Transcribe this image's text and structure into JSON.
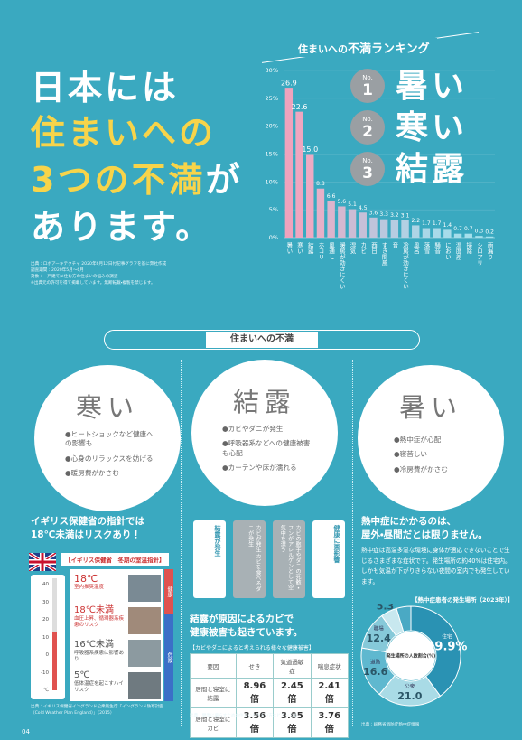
{
  "header": {
    "title_lines": [
      "日本には",
      "住まいへの",
      "3つの不満",
      "が",
      "あります。"
    ],
    "source_lines": [
      "出典：ロボアーキテクチャ 2020年6月12日付記事グラフを基に弊社作成",
      "調査期間：2020年5月〜6月",
      "対象：一戸建てに住む方の住まいの悩みの調査",
      "※出典元の許可を得て掲載しています。無断転載・複製を禁じます。"
    ]
  },
  "ranking": {
    "title_pre": "住まいへの",
    "title_em": "不満ランキング",
    "items": [
      {
        "no": "No.",
        "rank": "1",
        "label": "暑い"
      },
      {
        "no": "No.",
        "rank": "2",
        "label": "寒い"
      },
      {
        "no": "No.",
        "rank": "3",
        "label": "結露"
      }
    ]
  },
  "chart_data": [
    {
      "type": "bar",
      "categories": [
        "暑い",
        "寒い",
        "結露",
        "ホコリ",
        "風通し",
        "暖房が効きにくい",
        "湿気",
        "カビ",
        "西日",
        "すき間風",
        "音",
        "冷房が効きにくい",
        "風呂",
        "落雪",
        "騒音",
        "におい",
        "温度差",
        "掃除",
        "シロアリ",
        "雨漏り"
      ],
      "values": [
        26.9,
        22.6,
        15.0,
        8.8,
        6.6,
        5.6,
        5.1,
        4.5,
        3.6,
        3.3,
        3.2,
        3.1,
        2.2,
        1.7,
        1.7,
        1.4,
        0.7,
        0.7,
        0.3,
        0.2
      ],
      "value_labels": [
        "26.9",
        "22.6",
        "15.0",
        "8.8",
        "6.6",
        "5.6",
        "5.1",
        "4.5",
        "3.6",
        "3.3",
        "3.2",
        "3.1",
        "2.2",
        "1.7",
        "1.7",
        "1.4",
        "0.7",
        "0.7",
        "0.3",
        "0.2"
      ],
      "colors": [
        "#efa3bd",
        "#efa6c0",
        "#eeaac3",
        "#e6b0c8",
        "#dcb4cc",
        "#d4b8d0",
        "#ccbcd4",
        "#c6c0d8",
        "#c0c4db",
        "#bac8de",
        "#b6cce1",
        "#b2d0e3",
        "#aed4e5",
        "#abd7e7",
        "#a9dae9",
        "#a7dcea",
        "#a5deeb",
        "#a4e0ec",
        "#a3e1ed",
        "#a2e2ee"
      ],
      "ylim": [
        0,
        30
      ],
      "yticks": [
        {
          "value": 0,
          "label": "0%"
        },
        {
          "value": 5,
          "label": "5%"
        },
        {
          "value": 10,
          "label": "10%"
        },
        {
          "value": 15,
          "label": "15%"
        },
        {
          "value": 20,
          "label": "20%"
        },
        {
          "value": 25,
          "label": "25%"
        },
        {
          "value": 30,
          "label": "30%"
        }
      ]
    },
    {
      "type": "pie",
      "title": "【熱中症患者の発生場所（2023年）】",
      "center_label": "発生場所の人数割合(%)",
      "categories": [
        "住宅",
        "公衆",
        "道路",
        "職場",
        "その他",
        "教育機関"
      ],
      "values": [
        39.9,
        21.0,
        16.6,
        12.4,
        5.3,
        4.7
      ],
      "value_labels": [
        "39.9%",
        "21.0",
        "16.6",
        "12.4",
        "5.3",
        "4.7"
      ],
      "colors": [
        "#2a92b3",
        "#a9dbe6",
        "#5fb8cf",
        "#86c9d9",
        "#c8e8ef",
        "#4aa9c4"
      ]
    }
  ],
  "section": {
    "title_pre": "住まいへの",
    "title_em": "不満",
    "columns": [
      {
        "title": "寒い",
        "bullets": [
          "●ヒートショックなど健康への影響も",
          "●心身のリラックスを妨げる",
          "●暖房費がかさむ"
        ]
      },
      {
        "title": "結露",
        "bullets": [
          "●カビやダニが発生",
          "●呼吸器系などへの健康被害も心配",
          "●カーテンや床が濡れる"
        ]
      },
      {
        "title": "暑い",
        "bullets": [
          "●熱中症が心配",
          "●寝苦しい",
          "●冷房費がかさむ"
        ]
      }
    ]
  },
  "cold": {
    "title_lines": [
      "イギリス保健省の指針では",
      "18℃未満はリスクあり！"
    ],
    "guide_title": "【イギリス保健省　冬期の室温指針】",
    "scale": [
      "40",
      "30",
      "20",
      "10",
      "0",
      "-10",
      "℃"
    ],
    "bands": [
      "健康",
      "危険"
    ],
    "steps": [
      {
        "temp": "18℃",
        "text": "室内推奨温度"
      },
      {
        "temp": "18℃未満",
        "text": "血圧上昇、循環器系疾患のリスク"
      },
      {
        "temp": "16℃未満",
        "text": "呼吸器系疾患に影響あり"
      },
      {
        "temp": "5℃",
        "text": "低体温症を起こすハイリスク"
      }
    ],
    "source": "出典：イギリス保健省イングランド公衆衛生庁「イングランド防寒計画（Cold Weather Plan England）」（2015）"
  },
  "mold": {
    "boxes": [
      "結露が発生",
      "カビが発生 カビを食べるダニが発生",
      "カビの胞子やダニの死骸・フンがアレルゲンとして空気中を漂う",
      "健康に悪影響"
    ],
    "title_lines": [
      "結露が原因によるカビで",
      "健康被害も起きています。"
    ],
    "table_title": "【カビやダニによると考えられる様々な健康被害】",
    "table": {
      "header": [
        "要因",
        "せき",
        "気道過敏症",
        "喘息症状"
      ],
      "rows": [
        [
          "居間と寝室に結露",
          "8.96倍",
          "2.45倍",
          "2.41倍"
        ],
        [
          "居間と寝室にカビ",
          "3.56倍",
          "3.05倍",
          "3.76倍"
        ]
      ]
    },
    "source": "出典：健康に暮らすための住まいと住まい方エビデンス集"
  },
  "heat": {
    "title_lines": [
      "熱中症にかかるのは、",
      "屋外・昼間だとは限りません。"
    ],
    "paragraph": "熱中症は高温多湿な環境に身体が適応できないことで生じるさまざまな症状です。発生場所の約40%は住宅内。しかも気温が下がりきらない夜間の室内でも発生しています。",
    "source": "出典：総務省消防庁熱中症情報"
  },
  "page_number": "04"
}
